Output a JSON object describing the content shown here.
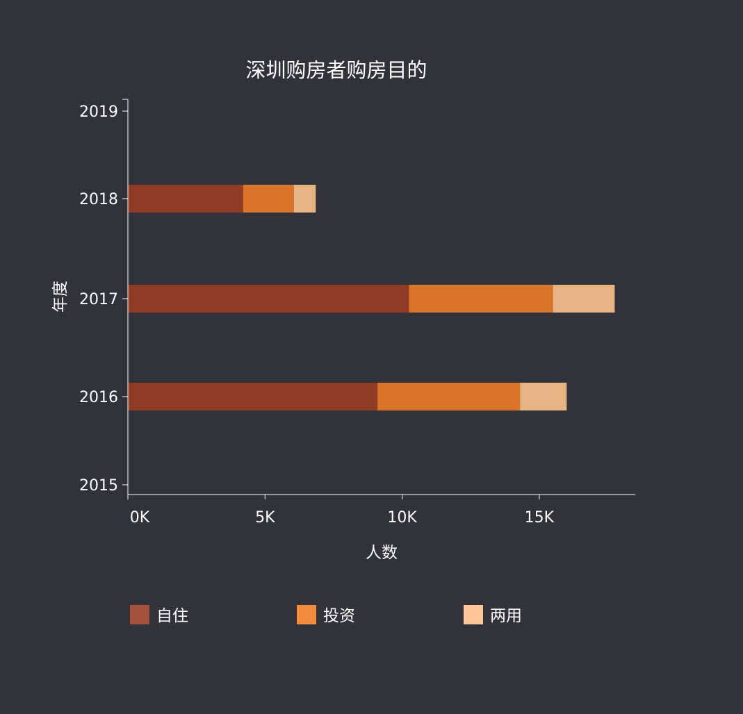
{
  "chart_data": {
    "type": "bar",
    "orientation": "horizontal",
    "stacked": true,
    "title": "深圳购房者购房目的",
    "xlabel": "人数",
    "ylabel": "年度",
    "categories": [
      "2019",
      "2018",
      "2017",
      "2016",
      "2015"
    ],
    "x_ticks": [
      "0K",
      "5K",
      "10K",
      "15K"
    ],
    "xlim": [
      0,
      18500
    ],
    "series": [
      {
        "name": "自住",
        "color": "#8e3c26",
        "legend_color": "#a6513c",
        "values": [
          0,
          4200,
          10250,
          9100,
          0
        ]
      },
      {
        "name": "投资",
        "color": "#d97428",
        "legend_color": "#f08c3c",
        "values": [
          0,
          1850,
          5250,
          5200,
          0
        ]
      },
      {
        "name": "两用",
        "color": "#e6b482",
        "legend_color": "#ffc896",
        "values": [
          0,
          800,
          2250,
          1700,
          0
        ]
      }
    ],
    "legend_position": "bottom",
    "grid": false,
    "background": "#32323a"
  }
}
